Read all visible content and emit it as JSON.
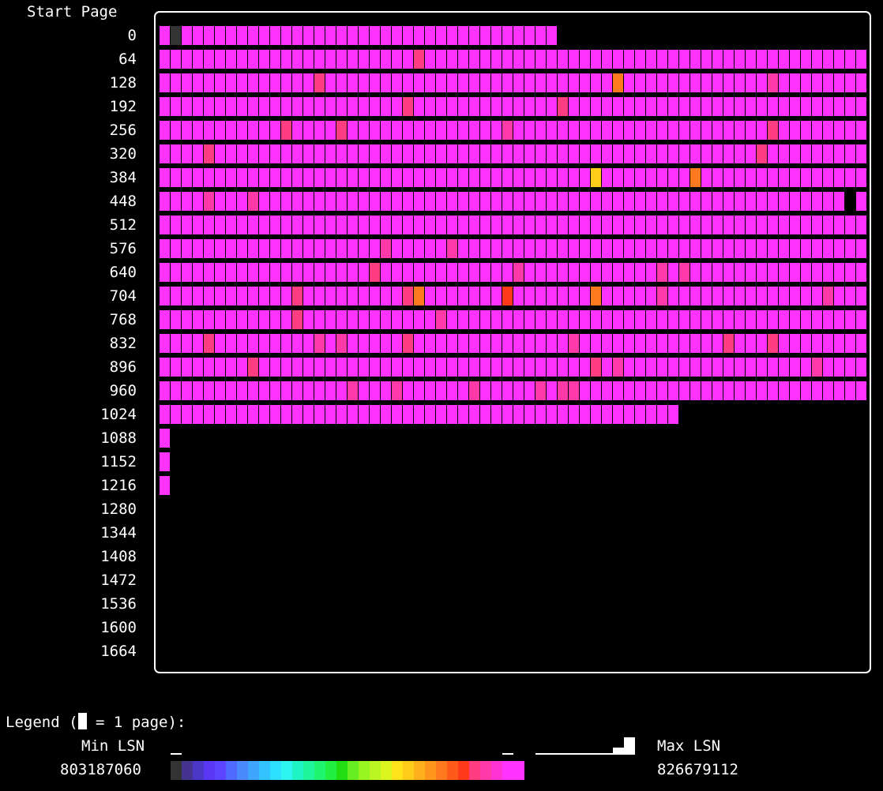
{
  "header": {
    "title": "Start Page"
  },
  "row_labels": [
    "0",
    "64",
    "128",
    "192",
    "256",
    "320",
    "384",
    "448",
    "512",
    "576",
    "640",
    "704",
    "768",
    "832",
    "896",
    "960",
    "1024",
    "1088",
    "1152",
    "1216",
    "1280",
    "1344",
    "1408",
    "1472",
    "1536",
    "1600",
    "1664"
  ],
  "pages_per_row": 64,
  "row_lengths": [
    36,
    64,
    64,
    64,
    64,
    64,
    64,
    64,
    64,
    64,
    64,
    64,
    64,
    64,
    64,
    64,
    47,
    1,
    1,
    1,
    0,
    0,
    0,
    0,
    0,
    0,
    0
  ],
  "base_color": "#ff33ff",
  "highlights": [
    {
      "row": 0,
      "col": 1,
      "color": "#333333"
    },
    {
      "row": 1,
      "col": 23,
      "color": "#ff3d80"
    },
    {
      "row": 2,
      "col": 14,
      "color": "#ff3d80"
    },
    {
      "row": 2,
      "col": 41,
      "color": "#ff7a1f"
    },
    {
      "row": 2,
      "col": 55,
      "color": "#ff3aa8"
    },
    {
      "row": 3,
      "col": 22,
      "color": "#ff3d80"
    },
    {
      "row": 3,
      "col": 36,
      "color": "#ff3d80"
    },
    {
      "row": 4,
      "col": 11,
      "color": "#ff3d80"
    },
    {
      "row": 4,
      "col": 16,
      "color": "#ff3d80"
    },
    {
      "row": 4,
      "col": 31,
      "color": "#ff3aa8"
    },
    {
      "row": 4,
      "col": 55,
      "color": "#ff3d80"
    },
    {
      "row": 5,
      "col": 4,
      "color": "#ff3d80"
    },
    {
      "row": 5,
      "col": 54,
      "color": "#ff3d80"
    },
    {
      "row": 6,
      "col": 39,
      "color": "#ffcc1a"
    },
    {
      "row": 6,
      "col": 48,
      "color": "#ff7a1f"
    },
    {
      "row": 7,
      "col": 4,
      "color": "#ff3aa8"
    },
    {
      "row": 7,
      "col": 8,
      "color": "#ff3aa8"
    },
    {
      "row": 7,
      "col": 62,
      "color": "#000000"
    },
    {
      "row": 9,
      "col": 20,
      "color": "#ff3aa8"
    },
    {
      "row": 9,
      "col": 26,
      "color": "#ff3aa8"
    },
    {
      "row": 10,
      "col": 19,
      "color": "#ff3d80"
    },
    {
      "row": 10,
      "col": 32,
      "color": "#ff3aa8"
    },
    {
      "row": 10,
      "col": 45,
      "color": "#ff3aa8"
    },
    {
      "row": 10,
      "col": 47,
      "color": "#ff3aa8"
    },
    {
      "row": 11,
      "col": 12,
      "color": "#ff3d80"
    },
    {
      "row": 11,
      "col": 22,
      "color": "#ff3d80"
    },
    {
      "row": 11,
      "col": 23,
      "color": "#ff7a1f"
    },
    {
      "row": 11,
      "col": 31,
      "color": "#ff3a1a"
    },
    {
      "row": 11,
      "col": 39,
      "color": "#ff7a1f"
    },
    {
      "row": 11,
      "col": 45,
      "color": "#ff3aa8"
    },
    {
      "row": 11,
      "col": 60,
      "color": "#ff3aa8"
    },
    {
      "row": 12,
      "col": 12,
      "color": "#ff3d80"
    },
    {
      "row": 12,
      "col": 25,
      "color": "#ff3aa8"
    },
    {
      "row": 13,
      "col": 4,
      "color": "#ff3d80"
    },
    {
      "row": 13,
      "col": 14,
      "color": "#ff3aa8"
    },
    {
      "row": 13,
      "col": 16,
      "color": "#ff3aa8"
    },
    {
      "row": 13,
      "col": 22,
      "color": "#ff3d80"
    },
    {
      "row": 13,
      "col": 37,
      "color": "#ff3aa8"
    },
    {
      "row": 13,
      "col": 51,
      "color": "#ff3d80"
    },
    {
      "row": 13,
      "col": 55,
      "color": "#ff3d80"
    },
    {
      "row": 14,
      "col": 8,
      "color": "#ff3d80"
    },
    {
      "row": 14,
      "col": 39,
      "color": "#ff3d80"
    },
    {
      "row": 14,
      "col": 41,
      "color": "#ff3aa8"
    },
    {
      "row": 14,
      "col": 59,
      "color": "#ff3aa8"
    },
    {
      "row": 15,
      "col": 17,
      "color": "#ff3aa8"
    },
    {
      "row": 15,
      "col": 21,
      "color": "#ff3aa8"
    },
    {
      "row": 15,
      "col": 28,
      "color": "#ff3aa8"
    },
    {
      "row": 15,
      "col": 34,
      "color": "#ff3aa8"
    },
    {
      "row": 15,
      "col": 36,
      "color": "#ff3aa8"
    },
    {
      "row": 15,
      "col": 37,
      "color": "#ff3aa8"
    }
  ],
  "legend": {
    "title_prefix": "Legend (",
    "title_suffix": " = 1 page):",
    "min_label": "Min LSN",
    "max_label": "Max LSN",
    "min_value": "803187060",
    "max_value": "826679112",
    "gradient": [
      "#333333",
      "#44338f",
      "#4a36c7",
      "#5a36f5",
      "#5b45ff",
      "#4f6bff",
      "#4a8aff",
      "#3fa6ff",
      "#33c4ff",
      "#2ee0ff",
      "#2ef5f0",
      "#1ff5c4",
      "#1ff59a",
      "#1ff56e",
      "#22f040",
      "#22dd11",
      "#66ee22",
      "#99f522",
      "#bbf522",
      "#ddf51f",
      "#ffe31a",
      "#ffcc1a",
      "#ffb01a",
      "#ff951a",
      "#ff7a1f",
      "#ff5a1a",
      "#ff3a1a",
      "#ff3d80",
      "#ff3aa8",
      "#ff33d4",
      "#ff33ff",
      "#ff33ff"
    ],
    "histogram": [
      {
        "index": 0,
        "level": 0.1
      },
      {
        "index": 30,
        "level": 0.1
      },
      {
        "index": 33,
        "level": 0.1
      },
      {
        "index": 34,
        "level": 0.1
      },
      {
        "index": 35,
        "level": 0.1
      },
      {
        "index": 36,
        "level": 0.1
      },
      {
        "index": 37,
        "level": 0.1
      },
      {
        "index": 38,
        "level": 0.1
      },
      {
        "index": 39,
        "level": 0.1
      },
      {
        "index": 40,
        "level": 0.4
      },
      {
        "index": 41,
        "level": 1.0
      }
    ]
  }
}
